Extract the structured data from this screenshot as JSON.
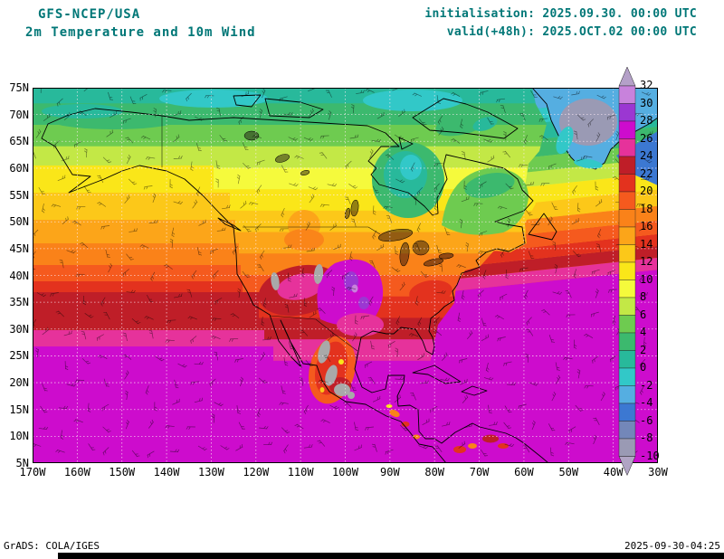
{
  "header": {
    "model": "GFS-NCEP/USA",
    "title": "2m Temperature and 10m Wind",
    "init": "initialisation: 2025.09.30. 00:00 UTC",
    "valid": "valid(+48h): 2025.OCT.02 00:00 UTC"
  },
  "footer": {
    "grads": "GrADS: COLA/IGES",
    "timestamp": "2025-09-30-04:25"
  },
  "axes": {
    "lat_labels": [
      "75N",
      "70N",
      "65N",
      "60N",
      "55N",
      "50N",
      "45N",
      "40N",
      "35N",
      "30N",
      "25N",
      "20N",
      "15N",
      "10N",
      "5N"
    ],
    "lon_labels": [
      "170W",
      "160W",
      "150W",
      "140W",
      "130W",
      "120W",
      "110W",
      "100W",
      "90W",
      "80W",
      "70W",
      "60W",
      "50W",
      "40W",
      "30W"
    ]
  },
  "colorbar": {
    "levels": [
      "32",
      "30",
      "28",
      "26",
      "24",
      "22",
      "20",
      "18",
      "16",
      "14",
      "12",
      "10",
      "8",
      "6",
      "4",
      "2",
      "0",
      "-2",
      "-4",
      "-6",
      "-8",
      "-10"
    ],
    "above_color": "#b4a0c8",
    "segment_colors": [
      "#c882dc",
      "#9b37d2",
      "#cd0ccd",
      "#e6329b",
      "#bf1e28",
      "#e3321e",
      "#f55a1e",
      "#fa8219",
      "#fca519",
      "#fcc819",
      "#fae619",
      "#f5fa3c",
      "#c3e846",
      "#6ecb50",
      "#3cb96e",
      "#28b99b",
      "#32c8c8",
      "#55aee1",
      "#3c78d2",
      "#7387b9",
      "#9a9ab4"
    ],
    "below_color": "#b0a4c4"
  },
  "chart_data": {
    "type": "heatmap",
    "title": "2m Temperature and 10m Wind",
    "model": "GFS-NCEP/USA",
    "initialisation": "2025.09.30. 00:00 UTC",
    "valid": "(+48h) 2025.OCT.02 00:00 UTC",
    "overlay": "10m wind barbs",
    "projection": "latlon",
    "lon_range_deg": [
      -170,
      -30
    ],
    "lat_range_deg": [
      5,
      75
    ],
    "grid_spacing": {
      "lon_deg": 10,
      "lat_deg": 5
    },
    "units": "degC",
    "levels_degC": [
      -10,
      -8,
      -6,
      -4,
      -2,
      0,
      2,
      4,
      6,
      8,
      10,
      12,
      14,
      16,
      18,
      20,
      22,
      24,
      26,
      28,
      30,
      32
    ],
    "legend_position": "right",
    "approx_zonal_bands": [
      {
        "lat": [
          72,
          75
        ],
        "color": "#28b99b"
      },
      {
        "lat": [
          68,
          72
        ],
        "color": "#3cb96e"
      },
      {
        "lat": [
          64,
          68
        ],
        "color": "#6ecb50"
      },
      {
        "lat": [
          60,
          64
        ],
        "color": "#c3e846"
      },
      {
        "lat": [
          56,
          60
        ],
        "color": "#f5fa3c"
      },
      {
        "lat": [
          52,
          56
        ],
        "color": "#fae619"
      },
      {
        "lat": [
          48,
          52
        ],
        "color": "#fcc819"
      },
      {
        "lat": [
          44,
          48
        ],
        "color": "#fca519"
      },
      {
        "lat": [
          40,
          44
        ],
        "color": "#fa8219"
      },
      {
        "lat": [
          36,
          40
        ],
        "color": "#f55a1e"
      },
      {
        "lat": [
          32,
          36
        ],
        "color": "#e3321e"
      },
      {
        "lat": [
          28,
          32
        ],
        "color": "#bf1e28"
      },
      {
        "lat": [
          24,
          28
        ],
        "color": "#e6329b"
      },
      {
        "lat": [
          5,
          24
        ],
        "color": "#cd0ccd"
      }
    ],
    "field_estimates": [
      {
        "region": "Caribbean / Gulf of Mexico / tropical Atlantic",
        "temp_degC": "26-30"
      },
      {
        "region": "Subtropical Pacific south of 28N",
        "temp_degC": "26-28"
      },
      {
        "region": "Eastern Pacific 28-38N",
        "temp_degC": "22-26"
      },
      {
        "region": "Southwest US / northern Mexico interior",
        "temp_degC": "24-32"
      },
      {
        "region": "Central US plains",
        "temp_degC": "24-30"
      },
      {
        "region": "Great Lakes / northeast US",
        "temp_degC": "14-20"
      },
      {
        "region": "Canadian prairies",
        "temp_degC": "10-16"
      },
      {
        "region": "Alaska interior / Yukon",
        "temp_degC": "6-12"
      },
      {
        "region": "Hudson Bay / northern Quebec",
        "temp_degC": "2-8"
      },
      {
        "region": "Arctic coast / archipelago",
        "temp_degC": "-2-4"
      },
      {
        "region": "Greenland interior",
        "temp_degC": "-10 - -4"
      },
      {
        "region": "Mexican plateau / Rockies high terrain",
        "temp_degC": "gray (off-scale terrain)"
      }
    ]
  }
}
